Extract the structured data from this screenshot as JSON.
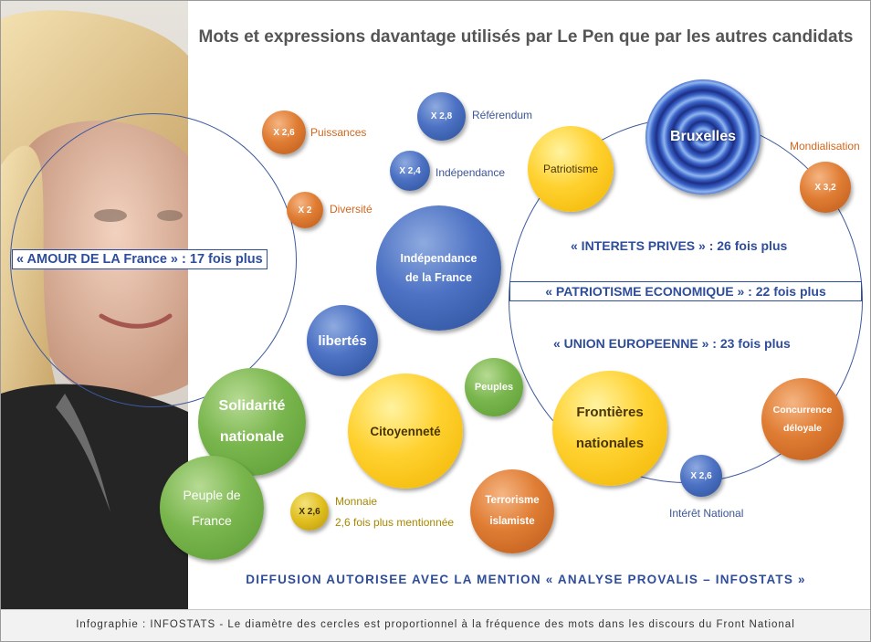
{
  "title": "Mots et expressions davantage utilisés par Le Pen que par les autres candidats",
  "bubbles": {
    "x26_puissances": "X 2,6",
    "x2_diversite": "X 2",
    "x28_referendum": "X 2,8",
    "x24_independance": "X 2,4",
    "independance_france": [
      "Indépendance",
      "de la France"
    ],
    "libertes": "libertés",
    "solidarite": [
      "Solidarité",
      "nationale"
    ],
    "peuple_france": [
      "Peuple de",
      "France"
    ],
    "citoyennete": "Citoyenneté",
    "peuples": "Peuples",
    "x26_monnaie": "X 2,6",
    "terrorisme": [
      "Terrorisme",
      "islamiste"
    ],
    "patriotisme": "Patriotisme",
    "bruxelles": "Bruxelles",
    "x32_mondialisation": "X 3,2",
    "frontieres": [
      "Frontières",
      "nationales"
    ],
    "concurrence": [
      "Concurrence",
      "déloyale"
    ],
    "x26_interet": "X 2,6"
  },
  "labels": {
    "puissances": "Puissances",
    "diversite": "Diversité",
    "referendum": "Référendum",
    "independance": "Indépendance",
    "mondialisation": "Mondialisation",
    "monnaie": "Monnaie",
    "monnaie_note": "2,6 fois plus mentionnée",
    "interet_national": "Intérêt National"
  },
  "quotes": {
    "amour_france": "« AMOUR DE LA France » : 17 fois plus",
    "interets_prives": "« INTERETS PRIVES » : 26 fois plus",
    "patriotisme_economique": "« PATRIOTISME ECONOMIQUE » : 22 fois plus",
    "union_europeenne": "« UNION EUROPEENNE » : 23 fois plus"
  },
  "diffusion": "DIFFUSION AUTORISEE AVEC LA MENTION « ANALYSE PROVALIS – INFOSTATS »",
  "footer": "Infographie : INFOSTATS - Le diamètre des cercles est proportionnel à la fréquence des mots dans les discours du Front National",
  "colors": {
    "blue": "#4d72c4",
    "orange": "#e07d34",
    "green": "#7ab64e",
    "yellow": "#ffd12f",
    "text_blue": "#2e4d9a"
  }
}
